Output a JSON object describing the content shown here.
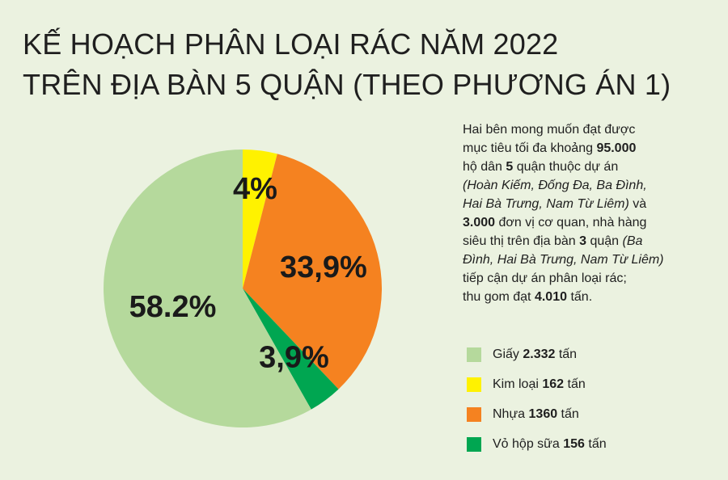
{
  "title": {
    "line1": "KẾ HOẠCH PHÂN LOẠI RÁC NĂM 2022",
    "line2": "TRÊN ĐỊA BÀN 5 QUẬN (THEO PHƯƠNG ÁN 1)"
  },
  "description": {
    "p1": "Hai bên mong muốn đạt được",
    "p2a": "mục tiêu tối đa khoảng ",
    "p2b": "95.000",
    "p3a": "hộ dân ",
    "p3b": "5",
    "p3c": " quận thuộc dự án",
    "p4": "(Hoàn Kiếm, Đống Đa, Ba Đình,",
    "p5a": "Hai Bà Trưng, Nam Từ Liêm)",
    "p5b": " và",
    "p6a": "3.000",
    "p6b": " đơn vị cơ quan, nhà hàng",
    "p7a": "siêu thị trên địa bàn ",
    "p7b": "3",
    "p7c": " quận ",
    "p7d": "(Ba",
    "p8": "Đình, Hai Bà Trưng, Nam Từ Liêm)",
    "p9": "tiếp cận dự án phân loại rác;",
    "p10a": "thu gom đạt ",
    "p10b": "4.010",
    "p10c": " tấn."
  },
  "legend": [
    {
      "name": "Giấy ",
      "value": "2.332",
      "unit": " tấn",
      "color": "#b5d99c"
    },
    {
      "name": "Kim loại ",
      "value": "162",
      "unit": " tấn",
      "color": "#fff200"
    },
    {
      "name": "Nhựa ",
      "value": "1360",
      "unit": " tấn",
      "color": "#f58220"
    },
    {
      "name": "Vỏ hộp sữa ",
      "value": "156",
      "unit": " tấn",
      "color": "#00a651"
    }
  ],
  "chart_data": {
    "type": "pie",
    "start_angle_deg": 0,
    "direction": "clockwise",
    "slices": [
      {
        "name": "Kim loại",
        "value": 4.0,
        "label": "4%",
        "color": "#fff200"
      },
      {
        "name": "Nhựa",
        "value": 33.9,
        "label": "33,9%",
        "color": "#f58220"
      },
      {
        "name": "Vỏ hộp sữa",
        "value": 3.9,
        "label": "3,9%",
        "color": "#00a651"
      },
      {
        "name": "Giấy",
        "value": 58.2,
        "label": "58.2%",
        "color": "#b5d99c"
      }
    ]
  }
}
